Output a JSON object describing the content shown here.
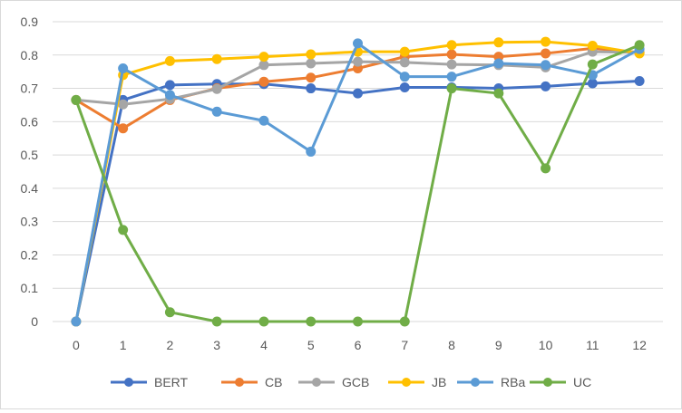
{
  "chart_data": {
    "type": "line",
    "title": "",
    "xlabel": "",
    "ylabel": "",
    "x": [
      0,
      1,
      2,
      3,
      4,
      5,
      6,
      7,
      8,
      9,
      10,
      11,
      12
    ],
    "ylim": [
      0,
      0.9
    ],
    "yticks": [
      0,
      0.1,
      0.2,
      0.3,
      0.4,
      0.5,
      0.6,
      0.7,
      0.8,
      0.9
    ],
    "grid": true,
    "legend_position": "bottom",
    "series": [
      {
        "name": "BERT",
        "color": "#4472C4",
        "values": [
          0,
          0.665,
          0.71,
          0.713,
          0.713,
          0.7,
          0.685,
          0.703,
          0.703,
          0.7,
          0.706,
          0.715,
          0.722
        ]
      },
      {
        "name": "CB",
        "color": "#ED7D31",
        "values": [
          0.665,
          0.58,
          0.665,
          0.7,
          0.72,
          0.732,
          0.76,
          0.795,
          0.802,
          0.795,
          0.805,
          0.82,
          0.808
        ]
      },
      {
        "name": "GCB",
        "color": "#A5A5A5",
        "values": [
          0.665,
          0.652,
          0.668,
          0.698,
          0.77,
          0.775,
          0.78,
          0.778,
          0.772,
          0.77,
          0.763,
          0.81,
          0.808
        ]
      },
      {
        "name": "JB",
        "color": "#FFC000",
        "values": [
          0,
          0.74,
          0.782,
          0.788,
          0.795,
          0.802,
          0.81,
          0.81,
          0.83,
          0.838,
          0.84,
          0.828,
          0.805
        ]
      },
      {
        "name": "RBa",
        "color": "#5B9BD5",
        "values": [
          0,
          0.76,
          0.68,
          0.63,
          0.603,
          0.51,
          0.835,
          0.735,
          0.735,
          0.775,
          0.77,
          0.74,
          0.818
        ]
      },
      {
        "name": "UC",
        "color": "#70AD47",
        "values": [
          0.665,
          0.275,
          0.028,
          0,
          0,
          0,
          0,
          0,
          0.7,
          0.685,
          0.46,
          0.772,
          0.83
        ]
      }
    ]
  }
}
